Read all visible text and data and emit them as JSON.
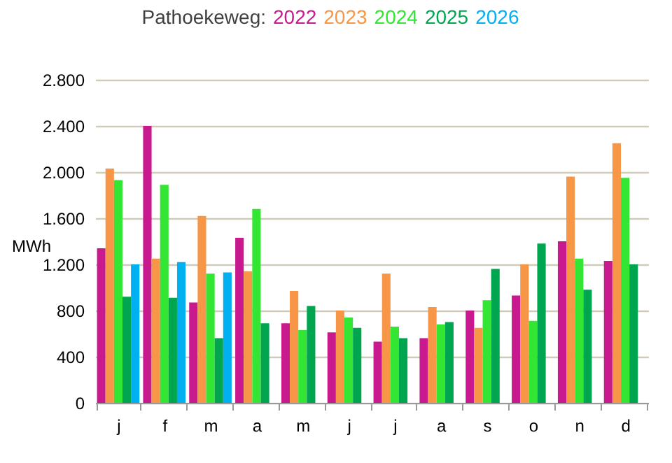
{
  "chart_data": {
    "type": "bar",
    "title": "Pathoekeweg:",
    "ylabel": "MWh",
    "categories": [
      "j",
      "f",
      "m",
      "a",
      "m",
      "j",
      "j",
      "a",
      "s",
      "o",
      "n",
      "d"
    ],
    "series": [
      {
        "name": "2022",
        "color": "#c8198f",
        "values": [
          1340,
          2400,
          870,
          1430,
          690,
          610,
          530,
          560,
          800,
          930,
          1400,
          1230
        ]
      },
      {
        "name": "2023",
        "color": "#f79646",
        "values": [
          2030,
          1250,
          1620,
          1140,
          970,
          800,
          1120,
          830,
          650,
          1200,
          1960,
          2250
        ]
      },
      {
        "name": "2024",
        "color": "#33e633",
        "values": [
          1930,
          1890,
          1120,
          1680,
          630,
          740,
          660,
          680,
          890,
          710,
          1250,
          1950
        ]
      },
      {
        "name": "2025",
        "color": "#00a550",
        "values": [
          920,
          910,
          560,
          690,
          840,
          650,
          560,
          700,
          1160,
          1380,
          980,
          1200
        ]
      },
      {
        "name": "2026",
        "color": "#00b0f0",
        "values": [
          1200,
          1220,
          1130,
          null,
          null,
          null,
          null,
          null,
          null,
          null,
          null,
          null
        ]
      }
    ],
    "ylim": [
      0,
      2800
    ],
    "yticks": [
      0,
      400,
      800,
      {
        "value": 1200,
        "label": "1.200"
      },
      {
        "value": 1600,
        "label": "1.600"
      },
      {
        "value": 2000,
        "label": "2.000"
      },
      {
        "value": 2400,
        "label": "2.400"
      },
      {
        "value": 2800,
        "label": "2.800"
      }
    ],
    "grid": "y",
    "legend": "top"
  }
}
